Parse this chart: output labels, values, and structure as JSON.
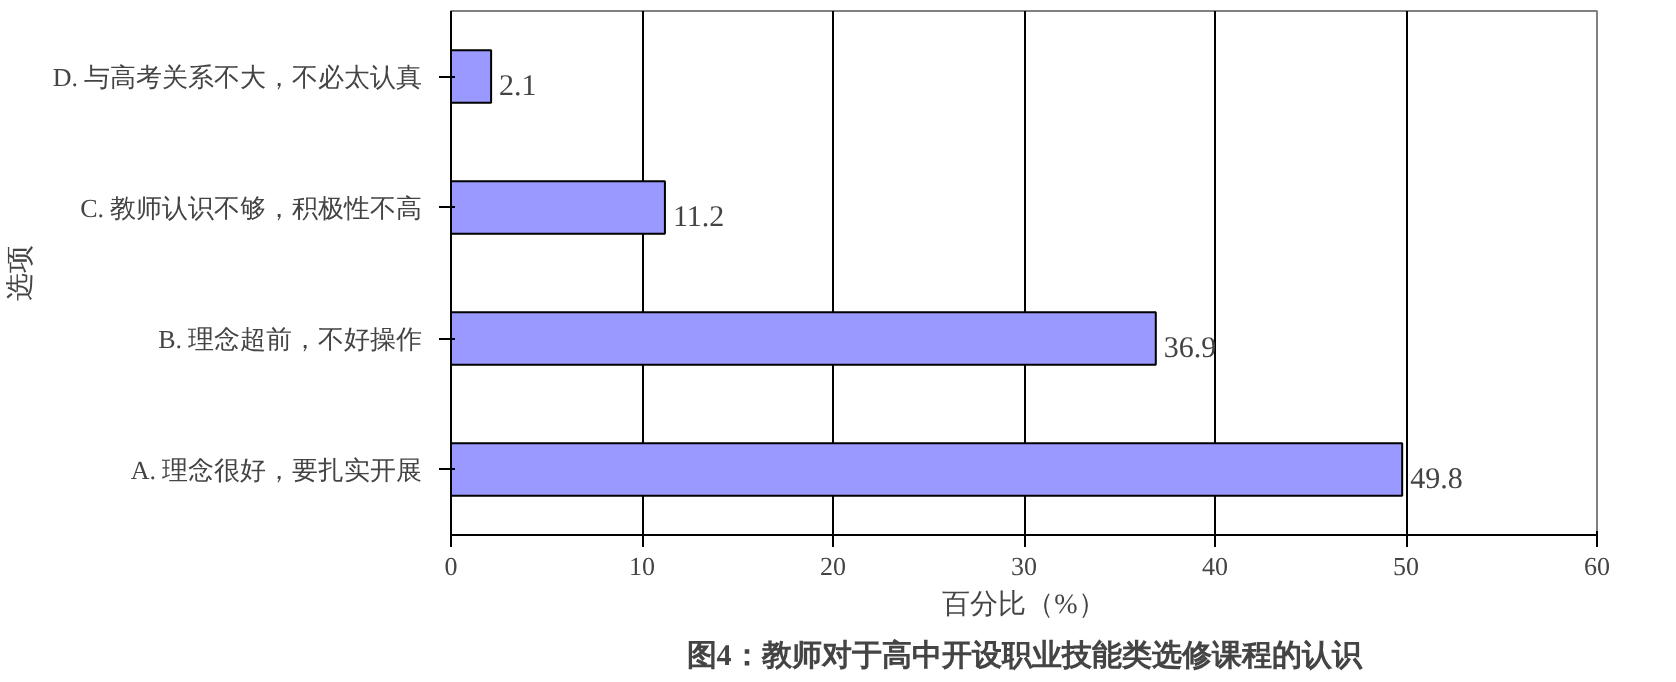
{
  "chart_data": {
    "type": "bar",
    "orientation": "horizontal",
    "title": "图4：教师对于高中开设职业技能类选修课程的认识",
    "xlabel": "百分比（%）",
    "ylabel": "选项",
    "categories": [
      "D.  与高考关系不大，不必太认真",
      "C.  教师认识不够，积极性不高",
      "B.  理念超前，不好操作",
      "A.  理念很好，要扎实开展"
    ],
    "values": [
      2.1,
      11.2,
      36.9,
      49.8
    ],
    "color": "#9999ff",
    "xlim": [
      0,
      60
    ],
    "xticks": [
      0,
      10,
      20,
      30,
      40,
      50,
      60
    ],
    "grid": "x",
    "data_labels": true
  }
}
